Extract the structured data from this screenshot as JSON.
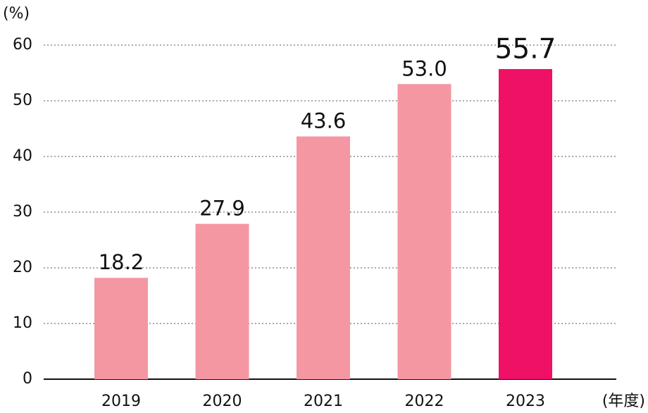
{
  "chart_data": {
    "type": "bar",
    "y_axis_label": "(%)",
    "x_axis_label": "(年度)",
    "categories": [
      "2019",
      "2020",
      "2021",
      "2022",
      "2023"
    ],
    "values": [
      18.2,
      27.9,
      43.6,
      53.0,
      55.7
    ],
    "value_labels": [
      "18.2",
      "27.9",
      "43.6",
      "53.0",
      "55.7"
    ],
    "colors": [
      "#f497a3",
      "#f497a3",
      "#f497a3",
      "#f497a3",
      "#ee1166"
    ],
    "ylim": [
      0,
      60
    ],
    "yticks": [
      0,
      10,
      20,
      30,
      40,
      50,
      60
    ],
    "grid": true
  }
}
